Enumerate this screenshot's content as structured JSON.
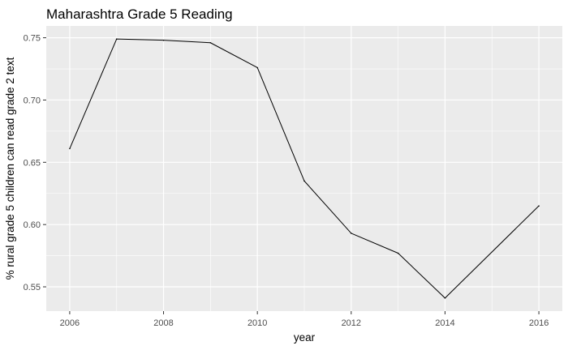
{
  "chart_data": {
    "type": "line",
    "title": "Maharashtra Grade 5 Reading",
    "xlabel": "year",
    "ylabel": "% rural grade 5 children can read grade 2 text",
    "x": [
      2006,
      2007,
      2008,
      2009,
      2010,
      2011,
      2012,
      2013,
      2014,
      2016
    ],
    "series": [
      {
        "values": [
          0.661,
          0.749,
          0.748,
          0.746,
          0.726,
          0.635,
          0.593,
          0.577,
          0.541,
          0.615
        ]
      }
    ],
    "x_ticks": [
      "2006",
      "2008",
      "2010",
      "2012",
      "2014",
      "2016"
    ],
    "y_ticks": [
      "0.55",
      "0.60",
      "0.65",
      "0.70",
      "0.75"
    ],
    "xlim": [
      2005.5,
      2016.5
    ],
    "ylim": [
      0.5305,
      0.7595
    ],
    "grid": true,
    "colors": {
      "panel_background": "#ebebeb",
      "grid_major": "#ffffff",
      "line": "#000000"
    }
  }
}
